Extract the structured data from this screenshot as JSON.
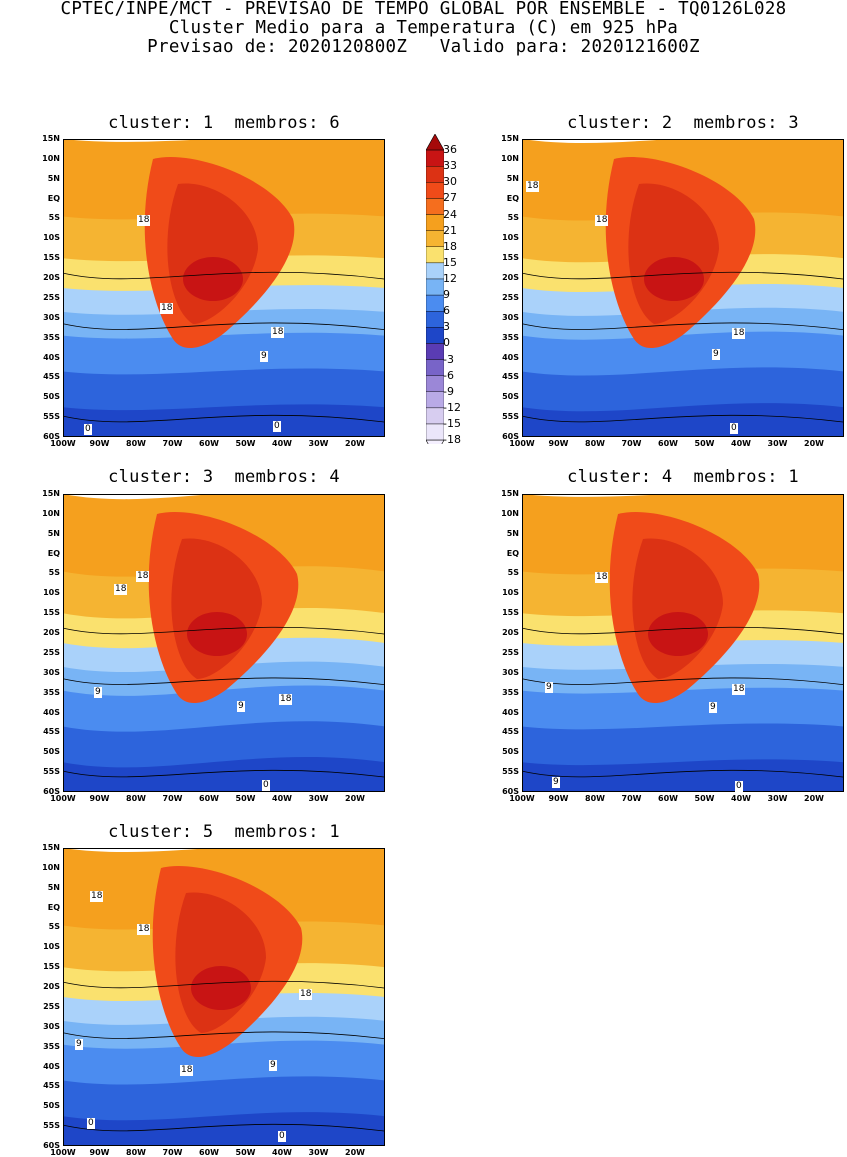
{
  "header": {
    "line1": "CPTEC/INPE/MCT - PREVISAO DE TEMPO GLOBAL POR ENSEMBLE - TQ0126L028",
    "line2": "Cluster Medio para a Temperatura (C) em 925 hPa",
    "line3": "Previsao de: 2020120800Z   Valido para: 2020121600Z"
  },
  "panels": [
    {
      "title": "cluster: 1  membros: 6",
      "contours": [
        {
          "label": "18"
        },
        {
          "label": "18"
        },
        {
          "label": "18"
        },
        {
          "label": "9"
        },
        {
          "label": "0"
        },
        {
          "label": "0"
        }
      ]
    },
    {
      "title": "cluster: 2  membros: 3",
      "contours": [
        {
          "label": "18"
        },
        {
          "label": "18"
        },
        {
          "label": "18"
        },
        {
          "label": "9"
        },
        {
          "label": "0"
        }
      ]
    },
    {
      "title": "cluster: 3  membros: 4",
      "contours": [
        {
          "label": "18"
        },
        {
          "label": "18"
        },
        {
          "label": "18"
        },
        {
          "label": "9"
        },
        {
          "label": "9"
        },
        {
          "label": "0"
        }
      ]
    },
    {
      "title": "cluster: 4  membros: 1",
      "contours": [
        {
          "label": "18"
        },
        {
          "label": "18"
        },
        {
          "label": "9"
        },
        {
          "label": "9"
        },
        {
          "label": "9"
        },
        {
          "label": "0"
        }
      ]
    },
    {
      "title": "cluster: 5  membros: 1",
      "contours": [
        {
          "label": "18"
        },
        {
          "label": "18"
        },
        {
          "label": "18"
        },
        {
          "label": "18"
        },
        {
          "label": "9"
        },
        {
          "label": "9"
        },
        {
          "label": "0"
        },
        {
          "label": "0"
        }
      ]
    }
  ],
  "lat_labels": [
    "15N",
    "10N",
    "5N",
    "EQ",
    "5S",
    "10S",
    "15S",
    "20S",
    "25S",
    "30S",
    "35S",
    "40S",
    "45S",
    "50S",
    "55S",
    "60S"
  ],
  "lon_labels": [
    "100W",
    "90W",
    "80W",
    "70W",
    "60W",
    "50W",
    "40W",
    "30W",
    "20W"
  ],
  "colorbar": {
    "labels": [
      "36",
      "33",
      "30",
      "27",
      "24",
      "21",
      "18",
      "15",
      "12",
      "9",
      "6",
      "3",
      "0",
      "-3",
      "-6",
      "-9",
      "-12",
      "-15",
      "-18"
    ],
    "colors": [
      "#a50a0a",
      "#c81414",
      "#dc3214",
      "#f04b19",
      "#f56e1e",
      "#f5a01e",
      "#f5b432",
      "#fae16e",
      "#aad2fa",
      "#78b4f5",
      "#4b8cf0",
      "#2d64dc",
      "#1e46c8",
      "#5a3cb4",
      "#7864c8",
      "#9b87d7",
      "#b9aae6",
      "#d7cdf0",
      "#ebe6fa",
      "#f5f0ff"
    ]
  }
}
